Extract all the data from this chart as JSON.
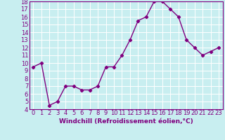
{
  "x": [
    0,
    1,
    2,
    3,
    4,
    5,
    6,
    7,
    8,
    9,
    10,
    11,
    12,
    13,
    14,
    15,
    16,
    17,
    18,
    19,
    20,
    21,
    22,
    23
  ],
  "y": [
    9.5,
    10,
    4.5,
    5,
    7,
    7,
    6.5,
    6.5,
    7,
    9.5,
    9.5,
    11,
    13,
    15.5,
    16,
    18,
    18,
    17,
    16,
    13,
    12,
    11,
    11.5,
    12
  ],
  "line_color": "#800080",
  "marker": "D",
  "marker_size": 2.2,
  "bg_color": "#c8eef0",
  "grid_color": "#ffffff",
  "xlabel": "Windchill (Refroidissement éolien,°C)",
  "xlabel_color": "#800080",
  "tick_color": "#800080",
  "ylim": [
    4,
    18
  ],
  "yticks": [
    4,
    5,
    6,
    7,
    8,
    9,
    10,
    11,
    12,
    13,
    14,
    15,
    16,
    17,
    18
  ],
  "xticks": [
    0,
    1,
    2,
    3,
    4,
    5,
    6,
    7,
    8,
    9,
    10,
    11,
    12,
    13,
    14,
    15,
    16,
    17,
    18,
    19,
    20,
    21,
    22,
    23
  ],
  "line_width": 1.0,
  "axis_label_fontsize": 6.5,
  "tick_fontsize": 6.0
}
